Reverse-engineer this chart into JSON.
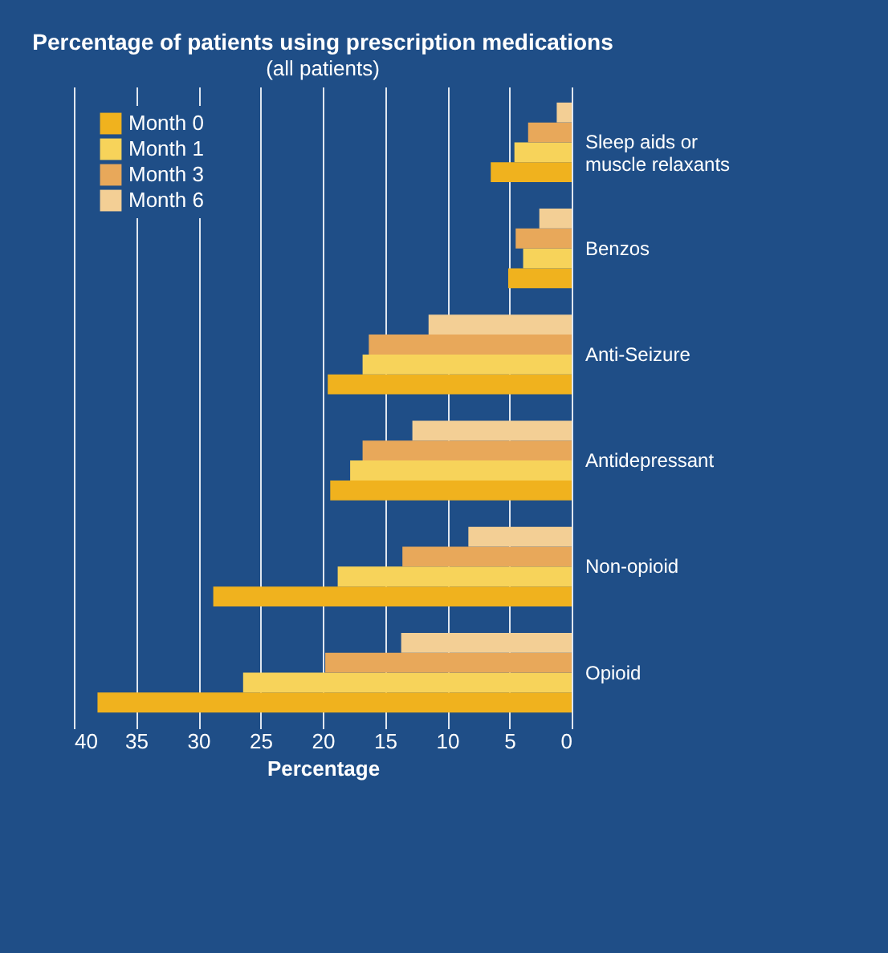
{
  "chart_data": {
    "type": "bar",
    "orientation": "horizontal",
    "title": "Percentage of patients using prescription medications",
    "subtitle": "(all patients)",
    "xlabel": "Percentage",
    "categories": [
      "Sleep aids or muscle relaxants",
      "Benzos",
      "Anti-Seizure",
      "Antidepressant",
      "Non-opioid",
      "Opioid"
    ],
    "series": [
      {
        "name": "Month 0",
        "color": "#f0b21e",
        "values": [
          6.5,
          5.1,
          19.6,
          19.4,
          28.8,
          38.1
        ]
      },
      {
        "name": "Month 1",
        "color": "#f7d35a",
        "values": [
          4.6,
          3.9,
          16.8,
          17.8,
          18.8,
          26.4
        ]
      },
      {
        "name": "Month 3",
        "color": "#e8a85a",
        "values": [
          3.5,
          4.5,
          16.3,
          16.8,
          13.6,
          19.8
        ]
      },
      {
        "name": "Month 6",
        "color": "#f3cf95",
        "values": [
          1.2,
          2.6,
          11.5,
          12.8,
          8.3,
          13.7
        ]
      }
    ],
    "xlim": [
      40,
      0
    ],
    "xticks": [
      40,
      35,
      30,
      25,
      20,
      15,
      10,
      5,
      0
    ],
    "grid": "x",
    "legend": "top left"
  }
}
